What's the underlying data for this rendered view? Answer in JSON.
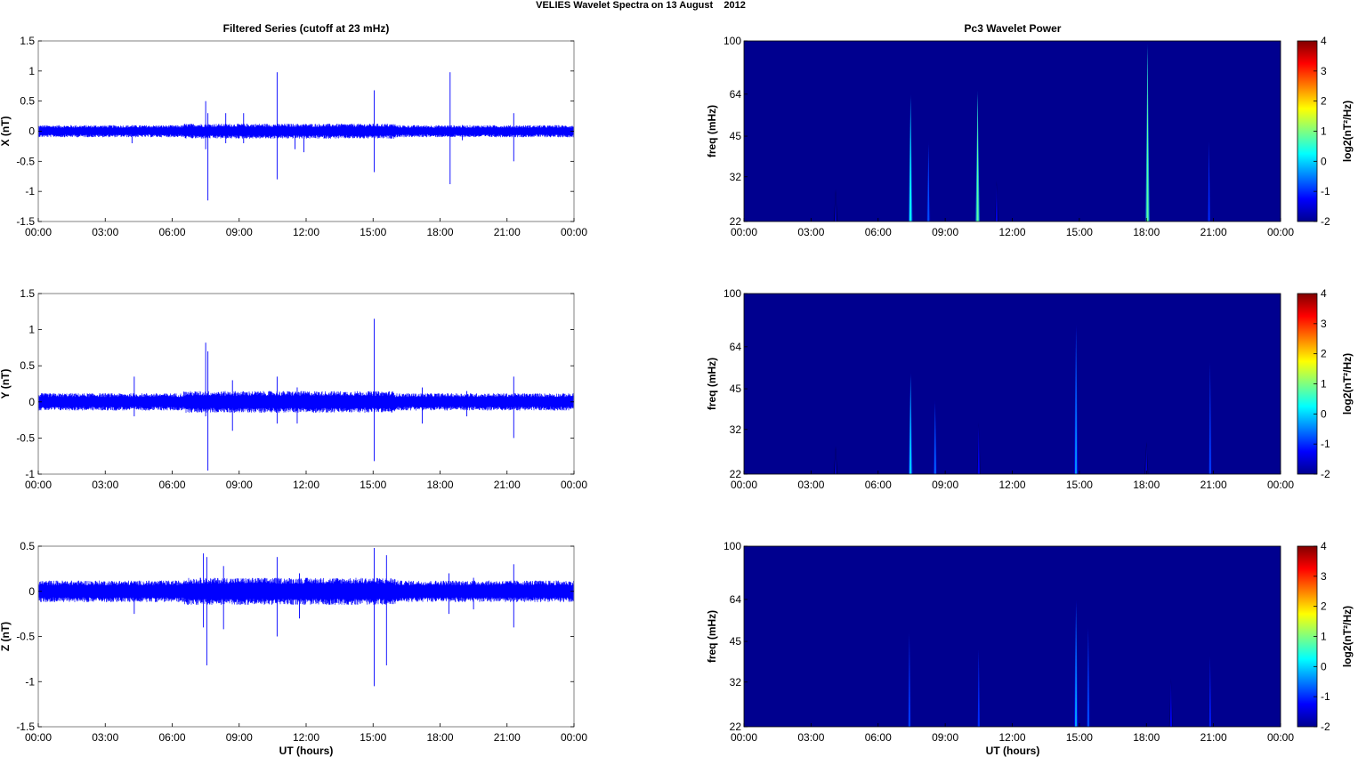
{
  "figure_title": "VELIES Wavelet Spectra on 13 August    2012",
  "left_column_title": "Filtered Series (cutoff at 23 mHz)",
  "right_column_title": "Pc3 Wavelet Power",
  "time_ticks": [
    "00:00",
    "03:00",
    "06:00",
    "09:00",
    "12:00",
    "15:00",
    "18:00",
    "21:00",
    "00:00"
  ],
  "x_axis_label": "UT (hours)",
  "colors": {
    "trace": "#0000ff",
    "background": "#00008f"
  },
  "colorbar": {
    "label": "log2(nT²/Hz)",
    "ticks": [
      "4",
      "3",
      "2",
      "1",
      "0",
      "-1",
      "-2"
    ],
    "colormap": "jet"
  },
  "chart_data": [
    {
      "type": "line",
      "ylabel": "X (nT)",
      "ylim": [
        -1.5,
        1.5
      ],
      "yticks": [
        "1.5",
        "1",
        "0.5",
        "0",
        "-0.5",
        "-1",
        "-1.5"
      ],
      "xlim": [
        0,
        24
      ],
      "noise_amplitude": 0.1,
      "spikes": [
        {
          "t": 4.2,
          "lo": -0.2,
          "hi": 0.1
        },
        {
          "t": 7.5,
          "lo": -0.3,
          "hi": 0.5
        },
        {
          "t": 7.6,
          "lo": -1.15,
          "hi": 0.3
        },
        {
          "t": 8.4,
          "lo": -0.2,
          "hi": 0.3
        },
        {
          "t": 9.2,
          "lo": -0.2,
          "hi": 0.3
        },
        {
          "t": 10.7,
          "lo": -0.8,
          "hi": 0.98
        },
        {
          "t": 11.5,
          "lo": -0.3,
          "hi": 0.1
        },
        {
          "t": 11.9,
          "lo": -0.35,
          "hi": 0.1
        },
        {
          "t": 15.05,
          "lo": -0.68,
          "hi": 0.68
        },
        {
          "t": 18.45,
          "lo": -0.88,
          "hi": 0.98
        },
        {
          "t": 19.0,
          "lo": -0.15,
          "hi": 0.1
        },
        {
          "t": 21.3,
          "lo": -0.5,
          "hi": 0.3
        }
      ]
    },
    {
      "type": "line",
      "ylabel": "Y (nT)",
      "ylim": [
        -1,
        1.5
      ],
      "yticks": [
        "1.5",
        "1",
        "0.5",
        "0",
        "-0.5",
        "-1"
      ],
      "xlim": [
        0,
        24
      ],
      "noise_amplitude": 0.12,
      "spikes": [
        {
          "t": 4.3,
          "lo": -0.2,
          "hi": 0.35
        },
        {
          "t": 7.5,
          "lo": -0.2,
          "hi": 0.82
        },
        {
          "t": 7.6,
          "lo": -0.95,
          "hi": 0.7
        },
        {
          "t": 8.7,
          "lo": -0.4,
          "hi": 0.3
        },
        {
          "t": 10.7,
          "lo": -0.3,
          "hi": 0.35
        },
        {
          "t": 11.6,
          "lo": -0.3,
          "hi": 0.2
        },
        {
          "t": 15.05,
          "lo": -0.82,
          "hi": 1.15
        },
        {
          "t": 17.2,
          "lo": -0.3,
          "hi": 0.2
        },
        {
          "t": 19.2,
          "lo": -0.2,
          "hi": 0.15
        },
        {
          "t": 21.3,
          "lo": -0.5,
          "hi": 0.35
        }
      ]
    },
    {
      "type": "line",
      "ylabel": "Z (nT)",
      "ylim": [
        -1.5,
        0.5
      ],
      "yticks": [
        "0.5",
        "0",
        "-0.5",
        "-1",
        "-1.5"
      ],
      "xlim": [
        0,
        24
      ],
      "noise_amplitude": 0.12,
      "spikes": [
        {
          "t": 4.3,
          "lo": -0.25,
          "hi": 0.1
        },
        {
          "t": 7.4,
          "lo": -0.4,
          "hi": 0.42
        },
        {
          "t": 7.55,
          "lo": -0.82,
          "hi": 0.38
        },
        {
          "t": 8.3,
          "lo": -0.42,
          "hi": 0.28
        },
        {
          "t": 10.7,
          "lo": -0.5,
          "hi": 0.38
        },
        {
          "t": 11.7,
          "lo": -0.3,
          "hi": 0.2
        },
        {
          "t": 15.05,
          "lo": -1.05,
          "hi": 0.48
        },
        {
          "t": 15.6,
          "lo": -0.82,
          "hi": 0.4
        },
        {
          "t": 18.4,
          "lo": -0.25,
          "hi": 0.2
        },
        {
          "t": 19.5,
          "lo": -0.2,
          "hi": 0.15
        },
        {
          "t": 21.3,
          "lo": -0.4,
          "hi": 0.3
        }
      ]
    },
    {
      "type": "heatmap",
      "ylabel": "freq (mHz)",
      "ylim": [
        22,
        100
      ],
      "yscale": "log",
      "yticks": [
        "100",
        "64",
        "45",
        "32",
        "22"
      ],
      "xlim": [
        0,
        24
      ],
      "clim": [
        -2,
        4
      ],
      "bursts": [
        {
          "t": 4.1,
          "f_top": 28,
          "power": -1.6
        },
        {
          "t": 7.45,
          "f_top": 62,
          "power": 0.3
        },
        {
          "t": 8.25,
          "f_top": 42,
          "power": -0.8
        },
        {
          "t": 10.45,
          "f_top": 64,
          "power": 0.8
        },
        {
          "t": 11.3,
          "f_top": 30,
          "power": -1.4
        },
        {
          "t": 18.05,
          "f_top": 95,
          "power": 0.8
        },
        {
          "t": 20.8,
          "f_top": 43,
          "power": -1.0
        }
      ]
    },
    {
      "type": "heatmap",
      "ylabel": "freq (mHz)",
      "ylim": [
        22,
        100
      ],
      "yscale": "log",
      "yticks": [
        "100",
        "64",
        "45",
        "32",
        "22"
      ],
      "xlim": [
        0,
        24
      ],
      "clim": [
        -2,
        4
      ],
      "bursts": [
        {
          "t": 4.1,
          "f_top": 27,
          "power": -1.6
        },
        {
          "t": 7.45,
          "f_top": 50,
          "power": 0.0
        },
        {
          "t": 8.55,
          "f_top": 40,
          "power": -0.7
        },
        {
          "t": 10.5,
          "f_top": 33,
          "power": -1.3
        },
        {
          "t": 14.85,
          "f_top": 75,
          "power": -0.4
        },
        {
          "t": 18.0,
          "f_top": 28,
          "power": -1.5
        },
        {
          "t": 20.85,
          "f_top": 56,
          "power": -0.9
        }
      ]
    },
    {
      "type": "heatmap",
      "ylabel": "freq (mHz)",
      "ylim": [
        22,
        100
      ],
      "yscale": "log",
      "yticks": [
        "100",
        "64",
        "45",
        "32",
        "22"
      ],
      "xlim": [
        0,
        24
      ],
      "clim": [
        -2,
        4
      ],
      "bursts": [
        {
          "t": 7.4,
          "f_top": 48,
          "power": -0.9
        },
        {
          "t": 10.5,
          "f_top": 42,
          "power": -1.0
        },
        {
          "t": 14.85,
          "f_top": 62,
          "power": -0.3
        },
        {
          "t": 15.4,
          "f_top": 50,
          "power": -0.8
        },
        {
          "t": 19.1,
          "f_top": 32,
          "power": -1.3
        },
        {
          "t": 20.85,
          "f_top": 40,
          "power": -1.1
        }
      ]
    }
  ]
}
